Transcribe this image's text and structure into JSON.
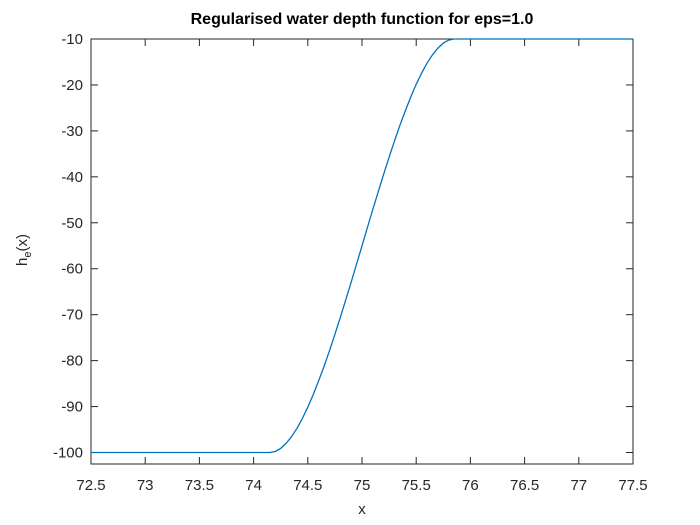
{
  "chart_data": {
    "type": "line",
    "title": "Regularised water depth function for eps=1.0",
    "xlabel": "x",
    "ylabel": {
      "base": "h",
      "sub": "e",
      "rest": "(x)"
    },
    "xlim": [
      72.5,
      77.5
    ],
    "ylim": [
      -102.5,
      -10
    ],
    "grid": false,
    "legend": "none",
    "line_color": "#0072BD",
    "axis_color": "#262626",
    "x_ticks": [
      {
        "v": 72.5,
        "label": "72.5"
      },
      {
        "v": 73,
        "label": "73"
      },
      {
        "v": 73.5,
        "label": "73.5"
      },
      {
        "v": 74,
        "label": "74"
      },
      {
        "v": 74.5,
        "label": "74.5"
      },
      {
        "v": 75,
        "label": "75"
      },
      {
        "v": 75.5,
        "label": "75.5"
      },
      {
        "v": 76,
        "label": "76"
      },
      {
        "v": 76.5,
        "label": "76.5"
      },
      {
        "v": 77,
        "label": "77"
      },
      {
        "v": 77.5,
        "label": "77.5"
      }
    ],
    "y_ticks": [
      {
        "v": -10,
        "label": "-10"
      },
      {
        "v": -20,
        "label": "-20"
      },
      {
        "v": -30,
        "label": "-30"
      },
      {
        "v": -40,
        "label": "-40"
      },
      {
        "v": -50,
        "label": "-50"
      },
      {
        "v": -60,
        "label": "-60"
      },
      {
        "v": -70,
        "label": "-70"
      },
      {
        "v": -80,
        "label": "-80"
      },
      {
        "v": -90,
        "label": "-90"
      },
      {
        "v": -100,
        "label": "-100"
      }
    ],
    "series": [
      {
        "name": "h_e(x)",
        "points": [
          [
            72.5,
            -100
          ],
          [
            73,
            -100
          ],
          [
            73.5,
            -100
          ],
          [
            74,
            -100
          ],
          [
            74.15,
            -100
          ],
          [
            74.2,
            -99.77
          ],
          [
            74.25,
            -99.1
          ],
          [
            74.3,
            -98.02
          ],
          [
            74.35,
            -96.56
          ],
          [
            74.4,
            -94.73
          ],
          [
            74.45,
            -92.58
          ],
          [
            74.5,
            -90.13
          ],
          [
            74.55,
            -87.4
          ],
          [
            74.6,
            -84.42
          ],
          [
            74.65,
            -81.22
          ],
          [
            74.7,
            -77.83
          ],
          [
            74.75,
            -74.28
          ],
          [
            74.8,
            -70.59
          ],
          [
            74.85,
            -66.79
          ],
          [
            74.9,
            -62.9
          ],
          [
            74.95,
            -58.97
          ],
          [
            75,
            -55
          ],
          [
            75.05,
            -51.03
          ],
          [
            75.1,
            -47.1
          ],
          [
            75.15,
            -43.21
          ],
          [
            75.2,
            -39.41
          ],
          [
            75.25,
            -35.72
          ],
          [
            75.3,
            -32.17
          ],
          [
            75.35,
            -28.78
          ],
          [
            75.4,
            -25.58
          ],
          [
            75.45,
            -22.6
          ],
          [
            75.5,
            -19.87
          ],
          [
            75.55,
            -17.42
          ],
          [
            75.6,
            -15.27
          ],
          [
            75.65,
            -13.44
          ],
          [
            75.7,
            -11.98
          ],
          [
            75.75,
            -10.9
          ],
          [
            75.8,
            -10.23
          ],
          [
            75.85,
            -10
          ],
          [
            76,
            -10
          ],
          [
            76.5,
            -10
          ],
          [
            77,
            -10
          ],
          [
            77.5,
            -10
          ]
        ]
      }
    ]
  }
}
